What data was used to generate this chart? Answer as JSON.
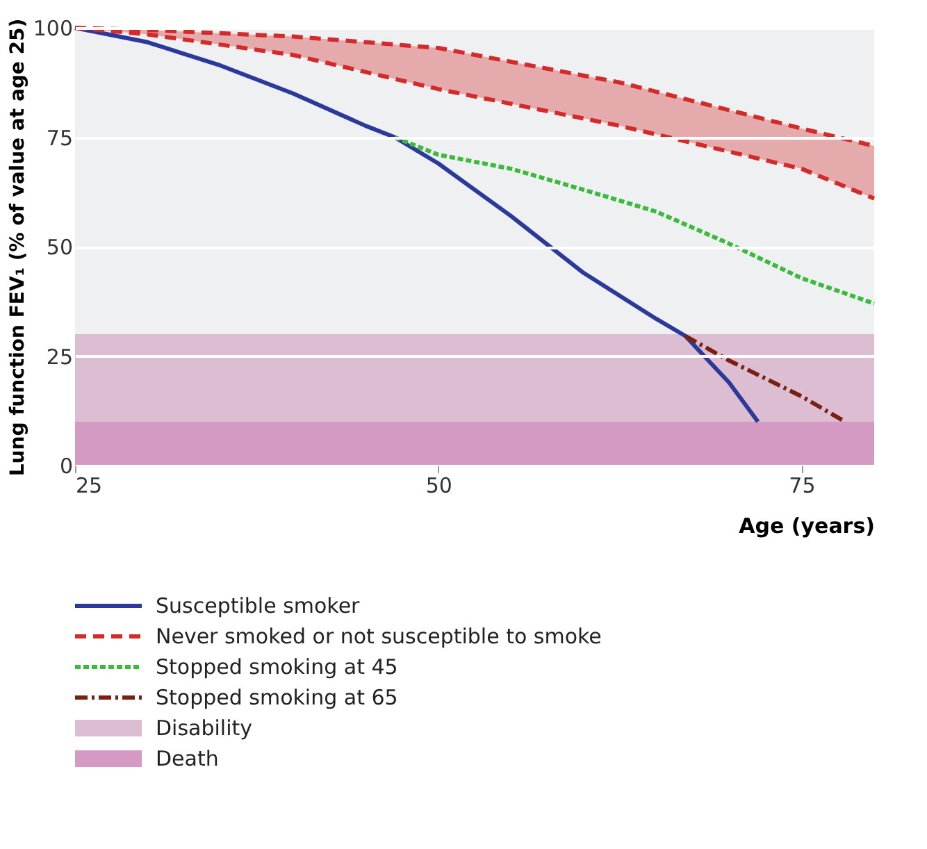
{
  "chart_data": {
    "type": "line",
    "xlabel": "Age (years)",
    "ylabel": "Lung function FEV₁ (% of value at age 25)",
    "xlim": [
      25,
      80
    ],
    "ylim": [
      0,
      100
    ],
    "xticks": [
      25,
      50,
      75
    ],
    "yticks": [
      0,
      25,
      50,
      75,
      100
    ],
    "grid": "y",
    "legend": "bottom",
    "marker": "none",
    "series": [
      {
        "name": "Susceptible smoker",
        "color": "#2b3a9a",
        "line_style": "solid",
        "x": [
          25,
          30,
          35,
          40,
          45,
          47,
          50,
          55,
          60,
          65,
          67,
          70,
          72
        ],
        "values": [
          100,
          96.7,
          91.4,
          85,
          77.6,
          75,
          69,
          57,
          44,
          33.5,
          29.6,
          19,
          10
        ]
      },
      {
        "name": "Never smoked or not susceptible to smoke",
        "color": "#d32a2a",
        "line_style": "dashed",
        "x": [
          25,
          30,
          40,
          50,
          62.5,
          75,
          80
        ],
        "values": [
          100,
          99.5,
          98,
          95.4,
          87.5,
          77,
          73
        ],
        "lower": [
          100,
          98.5,
          93.8,
          86,
          77.6,
          67.8,
          61
        ],
        "upper": [
          100,
          99.5,
          98,
          95.4,
          87.5,
          77,
          73
        ]
      },
      {
        "color": "#d32a2a",
        "line_style": "dashed",
        "x": [
          25,
          30,
          40,
          50,
          62.5,
          75,
          80
        ],
        "values": [
          100,
          98.5,
          93.8,
          86,
          77.6,
          67.8,
          61
        ]
      },
      {
        "name": "Stopped smoking at 45",
        "color": "#3cba3c",
        "line_style": "dotted",
        "x": [
          47,
          50,
          55,
          60,
          65,
          70,
          75,
          80
        ],
        "values": [
          75,
          71,
          67.8,
          63,
          58,
          50.7,
          42.8,
          37
        ]
      },
      {
        "name": "Stopped smoking at 65",
        "color": "#7a2010",
        "line_style": "dashdot",
        "x": [
          67,
          70,
          75,
          78
        ],
        "values": [
          29.6,
          24,
          15.8,
          10
        ]
      }
    ],
    "bands": [
      {
        "axis": "y",
        "from": 10,
        "to": 30,
        "label": "Disability",
        "color": "#dcbdd2"
      },
      {
        "axis": "y",
        "from": 0,
        "to": 10,
        "label": "Death",
        "color": "#d49ac4"
      }
    ]
  }
}
